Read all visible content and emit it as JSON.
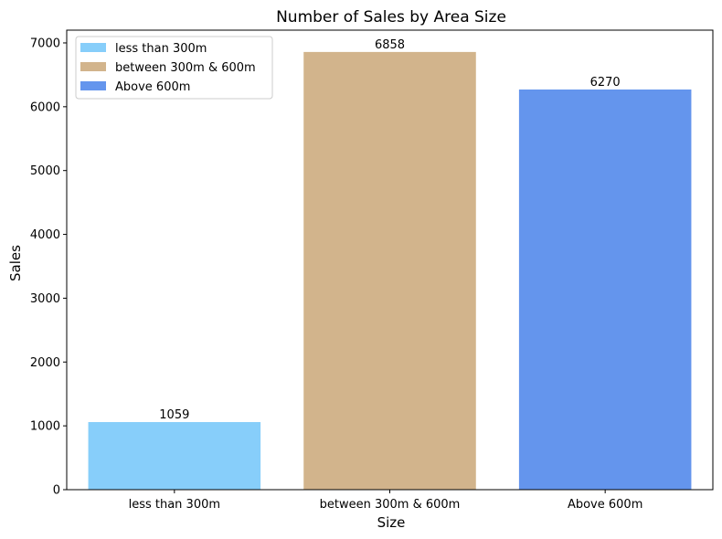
{
  "chart_data": {
    "type": "bar",
    "title": "Number of Sales by Area Size",
    "xlabel": "Size",
    "ylabel": "Sales",
    "categories": [
      "less than 300m",
      "between 300m & 600m",
      "Above 600m"
    ],
    "values": [
      1059,
      6858,
      6270
    ],
    "colors": [
      "#87CEFA",
      "#D2B48C",
      "#6495ED"
    ],
    "ylim": [
      0,
      7200
    ],
    "yticks": [
      0,
      1000,
      2000,
      3000,
      4000,
      5000,
      6000,
      7000
    ],
    "legend": {
      "placement": "top-left",
      "entries": [
        "less than 300m",
        "between 300m & 600m",
        "Above 600m"
      ]
    },
    "grid": false
  }
}
